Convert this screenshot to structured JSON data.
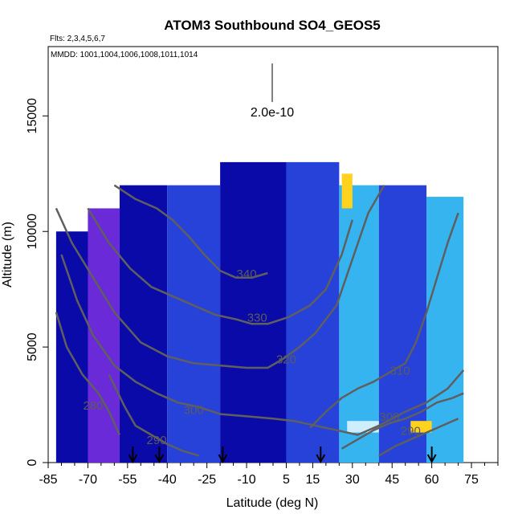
{
  "chart_data": {
    "type": "heatmap",
    "title": "ATOM3 Southbound SO4_GEOS5",
    "flights_note": "Flts: 2,3,4,5,6,7",
    "dates_note": "MMDD: 1001,1004,1006,1008,1011,1014",
    "xlabel": "Latitude (deg N)",
    "ylabel": "Altitude (m)",
    "xlim": [
      -85,
      85
    ],
    "ylim": [
      0,
      18000
    ],
    "x_tick_labels": [
      "-85",
      "-70",
      "-55",
      "-40",
      "-25",
      "-10",
      "5",
      "15",
      "30",
      "45",
      "60",
      "75"
    ],
    "x_tick_values": [
      -85,
      -70,
      -55,
      -40,
      -25,
      -10,
      5,
      15,
      30,
      45,
      60,
      75
    ],
    "x_minor_ticks": [
      -80,
      -75,
      -65,
      -60,
      -50,
      -45,
      -35,
      -30,
      -20,
      -15,
      -5,
      0,
      10,
      20,
      25,
      35,
      40,
      50,
      55,
      65,
      70,
      80,
      85
    ],
    "y_ticks": [
      0,
      5000,
      10000,
      15000
    ],
    "scale_bar_label": "2.0e-10",
    "colors": {
      "deep": "#0a0aa8",
      "blue": "#2742d8",
      "purple": "#6a2ad8",
      "cyan": "#35b4f0",
      "pale": "#cdeefc",
      "yellow": "#ffd21e",
      "contour": "#5f5f5f"
    },
    "flight_markers_lat": [
      -53,
      -43,
      -19,
      18,
      60
    ],
    "theta_contours": [
      {
        "label": "280",
        "label_at": [
          -68,
          2300
        ],
        "points": [
          [
            -82,
            6500
          ],
          [
            -78,
            5000
          ],
          [
            -72,
            3800
          ],
          [
            -66,
            3000
          ],
          [
            -62,
            2200
          ],
          [
            -58,
            1200
          ]
        ]
      },
      {
        "label": "290",
        "label_at": [
          -44,
          800
        ],
        "points": [
          [
            -62,
            3800
          ],
          [
            -56,
            2400
          ],
          [
            -52,
            1600
          ],
          [
            -46,
            1200
          ],
          [
            -40,
            800
          ],
          [
            -34,
            500
          ],
          [
            -28,
            300
          ]
        ]
      },
      {
        "label": "300",
        "label_at": [
          -30,
          2100
        ],
        "points": [
          [
            -80,
            9000
          ],
          [
            -74,
            7000
          ],
          [
            -68,
            5500
          ],
          [
            -60,
            4200
          ],
          [
            -52,
            3500
          ],
          [
            -44,
            3000
          ],
          [
            -36,
            2600
          ],
          [
            -28,
            2400
          ],
          [
            -20,
            2100
          ],
          [
            -10,
            2000
          ],
          [
            0,
            1900
          ],
          [
            8,
            1800
          ],
          [
            16,
            1600
          ],
          [
            24,
            1400
          ],
          [
            32,
            1200
          ],
          [
            40,
            1600
          ],
          [
            50,
            2200
          ],
          [
            58,
            2600
          ],
          [
            66,
            3200
          ],
          [
            72,
            4000
          ]
        ]
      },
      {
        "label": "320",
        "label_at": [
          5,
          4300
        ],
        "points": [
          [
            -82,
            11000
          ],
          [
            -76,
            9500
          ],
          [
            -68,
            8000
          ],
          [
            -60,
            6500
          ],
          [
            -50,
            5200
          ],
          [
            -40,
            4600
          ],
          [
            -30,
            4300
          ],
          [
            -20,
            4200
          ],
          [
            -10,
            4100
          ],
          [
            -2,
            4100
          ],
          [
            4,
            4500
          ],
          [
            10,
            5000
          ],
          [
            16,
            5600
          ],
          [
            24,
            6800
          ],
          [
            30,
            8800
          ],
          [
            36,
            10800
          ],
          [
            42,
            12000
          ]
        ]
      },
      {
        "label": "330",
        "label_at": [
          -6,
          6100
        ],
        "points": [
          [
            -70,
            11000
          ],
          [
            -62,
            9500
          ],
          [
            -54,
            8400
          ],
          [
            -46,
            7600
          ],
          [
            -38,
            7200
          ],
          [
            -30,
            6800
          ],
          [
            -22,
            6400
          ],
          [
            -14,
            6200
          ],
          [
            -8,
            6000
          ],
          [
            -2,
            6000
          ],
          [
            6,
            6300
          ],
          [
            14,
            6800
          ],
          [
            20,
            7500
          ],
          [
            26,
            9000
          ],
          [
            30,
            10500
          ]
        ]
      },
      {
        "label": "340",
        "label_at": [
          -10,
          8000
        ],
        "points": [
          [
            -60,
            12000
          ],
          [
            -52,
            11400
          ],
          [
            -44,
            11000
          ],
          [
            -38,
            10500
          ],
          [
            -32,
            9800
          ],
          [
            -26,
            9000
          ],
          [
            -20,
            8300
          ],
          [
            -14,
            8000
          ],
          [
            -8,
            8000
          ],
          [
            -2,
            8200
          ]
        ]
      },
      {
        "label": "310",
        "label_at": [
          48,
          3800
        ],
        "points": [
          [
            14,
            1500
          ],
          [
            20,
            2200
          ],
          [
            26,
            2800
          ],
          [
            32,
            3200
          ],
          [
            38,
            3500
          ],
          [
            44,
            3900
          ],
          [
            50,
            4300
          ],
          [
            54,
            5200
          ],
          [
            58,
            6500
          ],
          [
            62,
            8000
          ],
          [
            66,
            9500
          ],
          [
            70,
            10800
          ]
        ]
      },
      {
        "label": "300",
        "label_at": [
          44,
          1800
        ],
        "points": [
          [
            26,
            600
          ],
          [
            32,
            1000
          ],
          [
            38,
            1400
          ],
          [
            44,
            1700
          ],
          [
            50,
            1900
          ],
          [
            56,
            2200
          ],
          [
            62,
            2600
          ],
          [
            68,
            2800
          ],
          [
            72,
            3000
          ]
        ]
      },
      {
        "label": "290",
        "label_at": [
          52,
          1200
        ],
        "points": [
          [
            40,
            300
          ],
          [
            46,
            700
          ],
          [
            52,
            1000
          ],
          [
            58,
            1300
          ],
          [
            64,
            1600
          ],
          [
            70,
            1900
          ]
        ]
      }
    ],
    "field_cells": [
      {
        "lat_from": -82,
        "lat_to": -68,
        "alt_from": 0,
        "alt_to": 10000,
        "shade": "deep"
      },
      {
        "lat_from": -70,
        "lat_to": -58,
        "alt_from": 0,
        "alt_to": 11000,
        "shade": "purple"
      },
      {
        "lat_from": -58,
        "lat_to": -40,
        "alt_from": 0,
        "alt_to": 12000,
        "shade": "deep"
      },
      {
        "lat_from": -40,
        "lat_to": -20,
        "alt_from": 0,
        "alt_to": 12000,
        "shade": "blue"
      },
      {
        "lat_from": -20,
        "lat_to": 5,
        "alt_from": 0,
        "alt_to": 13000,
        "shade": "deep"
      },
      {
        "lat_from": 5,
        "lat_to": 25,
        "alt_from": 0,
        "alt_to": 13000,
        "shade": "blue"
      },
      {
        "lat_from": 25,
        "lat_to": 40,
        "alt_from": 0,
        "alt_to": 12000,
        "shade": "cyan"
      },
      {
        "lat_from": 40,
        "lat_to": 58,
        "alt_from": 0,
        "alt_to": 12000,
        "shade": "blue"
      },
      {
        "lat_from": 58,
        "lat_to": 72,
        "alt_from": 0,
        "alt_to": 11500,
        "shade": "cyan"
      },
      {
        "lat_from": 26,
        "lat_to": 30,
        "alt_from": 11000,
        "alt_to": 12500,
        "shade": "yellow"
      },
      {
        "lat_from": 52,
        "lat_to": 60,
        "alt_from": 1300,
        "alt_to": 1800,
        "shade": "yellow"
      },
      {
        "lat_from": 28,
        "lat_to": 40,
        "alt_from": 1300,
        "alt_to": 1800,
        "shade": "pale"
      }
    ]
  }
}
